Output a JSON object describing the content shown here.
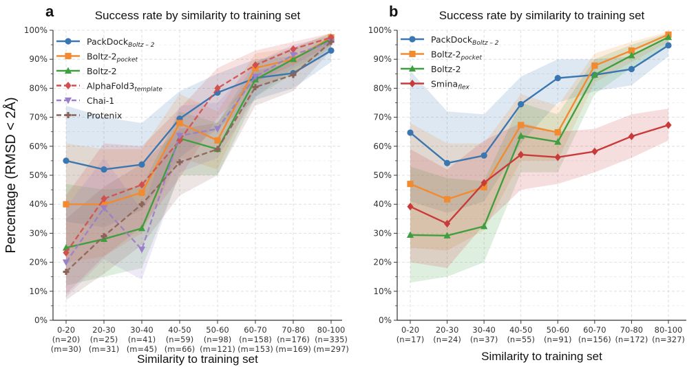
{
  "chart_data": [
    {
      "panel": "a",
      "type": "line",
      "title": "Success rate by similarity to training set",
      "xlabel": "Similarity to training set",
      "ylabel": "Percentage (RMSD < 2Å)",
      "ylim": [
        0,
        100
      ],
      "yticks": [
        "0%",
        "10%",
        "20%",
        "30%",
        "40%",
        "50%",
        "60%",
        "70%",
        "80%",
        "90%",
        "100%"
      ],
      "grid": true,
      "legend_position": "top-left",
      "categories": [
        "0-20",
        "20-30",
        "30-40",
        "40-50",
        "50-60",
        "60-70",
        "70-80",
        "80-100"
      ],
      "category_n": [
        "(n=20)",
        "(n=25)",
        "(n=41)",
        "(n=59)",
        "(n=98)",
        "(n=158)",
        "(n=176)",
        "(n=335)"
      ],
      "category_m": [
        "(m=30)",
        "(m=31)",
        "(m=45)",
        "(m=66)",
        "(m=121)",
        "(m=153)",
        "(m=169)",
        "(m=297)"
      ],
      "series": [
        {
          "name": "PackDock",
          "subscript": "Boltz – 2",
          "color": "#3a76b0",
          "marker": "circle",
          "dash": false,
          "values": [
            55,
            52,
            53.7,
            69.5,
            78.5,
            83.5,
            85.2,
            93
          ],
          "lower": [
            34,
            32,
            38,
            56,
            66,
            76,
            80,
            89
          ],
          "upper": [
            74,
            70,
            68,
            79,
            85,
            90,
            91,
            96
          ]
        },
        {
          "name": "Boltz-2",
          "subscript": "pocket",
          "color": "#f28a30",
          "marker": "square",
          "dash": false,
          "values": [
            40,
            40,
            44,
            68,
            62,
            87,
            90,
            97.5
          ],
          "lower": [
            20,
            22,
            30,
            56,
            52,
            80,
            85,
            95
          ],
          "upper": [
            61,
            59,
            59,
            78,
            72,
            92,
            94,
            99
          ]
        },
        {
          "name": "Boltz-2",
          "subscript": "",
          "color": "#3f9e3f",
          "marker": "triangle-up",
          "dash": false,
          "values": [
            25,
            28,
            31.7,
            62.7,
            59,
            83,
            90,
            97
          ],
          "lower": [
            12,
            15,
            18,
            50,
            50,
            77,
            85,
            94
          ],
          "upper": [
            47,
            45,
            46,
            72,
            68,
            89,
            94,
            99
          ]
        },
        {
          "name": "AlphaFold3",
          "subscript": "template",
          "color": "#d14f4f",
          "marker": "diamond",
          "dash": true,
          "values": [
            23.3,
            41.9,
            46.7,
            62,
            80,
            88,
            93.5,
            97.5
          ],
          "lower": [
            9,
            22,
            32,
            49,
            70,
            82,
            88,
            95
          ],
          "upper": [
            43,
            61,
            60,
            73,
            87,
            93,
            96,
            99
          ]
        },
        {
          "name": "Chai-1",
          "subscript": "",
          "color": "#9a7fc9",
          "marker": "triangle-down",
          "dash": true,
          "values": [
            20,
            38.7,
            24.4,
            63.6,
            66,
            84,
            91.5,
            96
          ],
          "lower": [
            8,
            21,
            14,
            51,
            56,
            77,
            87,
            93
          ],
          "upper": [
            39,
            56,
            38,
            74,
            75,
            89,
            95,
            98
          ]
        },
        {
          "name": "Protenix",
          "subscript": "",
          "color": "#8c6358",
          "marker": "plus",
          "dash": true,
          "values": [
            16.7,
            29,
            40,
            54.5,
            59,
            80.4,
            84.6,
            96
          ],
          "lower": [
            7,
            16,
            26,
            43,
            50,
            74,
            79,
            93
          ],
          "upper": [
            35,
            46,
            54,
            66,
            68,
            86,
            89,
            98
          ]
        }
      ]
    },
    {
      "panel": "b",
      "type": "line",
      "title": "Success rate by similarity to training set",
      "xlabel": "Similarity to training set",
      "ylabel": "",
      "ylim": [
        0,
        100
      ],
      "yticks": [
        "0%",
        "10%",
        "20%",
        "30%",
        "40%",
        "50%",
        "60%",
        "70%",
        "80%",
        "90%",
        "100%"
      ],
      "grid": true,
      "legend_position": "top-left",
      "categories": [
        "0-20",
        "20-30",
        "30-40",
        "40-50",
        "50-60",
        "60-70",
        "70-80",
        "80-100"
      ],
      "category_n": [
        "(n=17)",
        "(n=24)",
        "(n=37)",
        "(n=55)",
        "(n=91)",
        "(n=156)",
        "(n=172)",
        "(n=327)"
      ],
      "category_m": [],
      "series": [
        {
          "name": "PackDock",
          "subscript": "Boltz – 2",
          "color": "#3a76b0",
          "marker": "circle",
          "dash": false,
          "values": [
            64.7,
            54.2,
            56.8,
            74.5,
            83.5,
            84.6,
            86.6,
            94.8
          ],
          "lower": [
            41,
            37,
            41,
            61,
            75,
            79,
            81,
            91
          ],
          "upper": [
            86,
            72,
            71,
            84,
            90,
            90,
            91,
            97
          ]
        },
        {
          "name": "Boltz-2",
          "subscript": "pocket",
          "color": "#f28a30",
          "marker": "square",
          "dash": false,
          "values": [
            47,
            41.7,
            45.9,
            67.3,
            64.8,
            87.8,
            93,
            98.5
          ],
          "lower": [
            25,
            24,
            31,
            55,
            55,
            82,
            89,
            96
          ],
          "upper": [
            68,
            61,
            61,
            78,
            74,
            92,
            96,
            99.5
          ]
        },
        {
          "name": "Boltz-2",
          "subscript": "",
          "color": "#3f9e3f",
          "marker": "triangle-up",
          "dash": false,
          "values": [
            29.4,
            29.2,
            32.4,
            63.6,
            61.5,
            84.6,
            91.3,
            97.6
          ],
          "lower": [
            13,
            15,
            20,
            51,
            51,
            78,
            87,
            95
          ],
          "upper": [
            53,
            49,
            48,
            75,
            71,
            90,
            95,
            99
          ]
        },
        {
          "name": "Smina",
          "subscript": "flex",
          "color": "#c93a3a",
          "marker": "diamond",
          "dash": false,
          "values": [
            39.2,
            33.3,
            47.4,
            57.1,
            56.2,
            58.2,
            63.4,
            67.3
          ],
          "lower": [
            20,
            18,
            33,
            45,
            47,
            51,
            56,
            62
          ],
          "upper": [
            59,
            52,
            62,
            68,
            65,
            66,
            71,
            73
          ]
        }
      ]
    }
  ]
}
